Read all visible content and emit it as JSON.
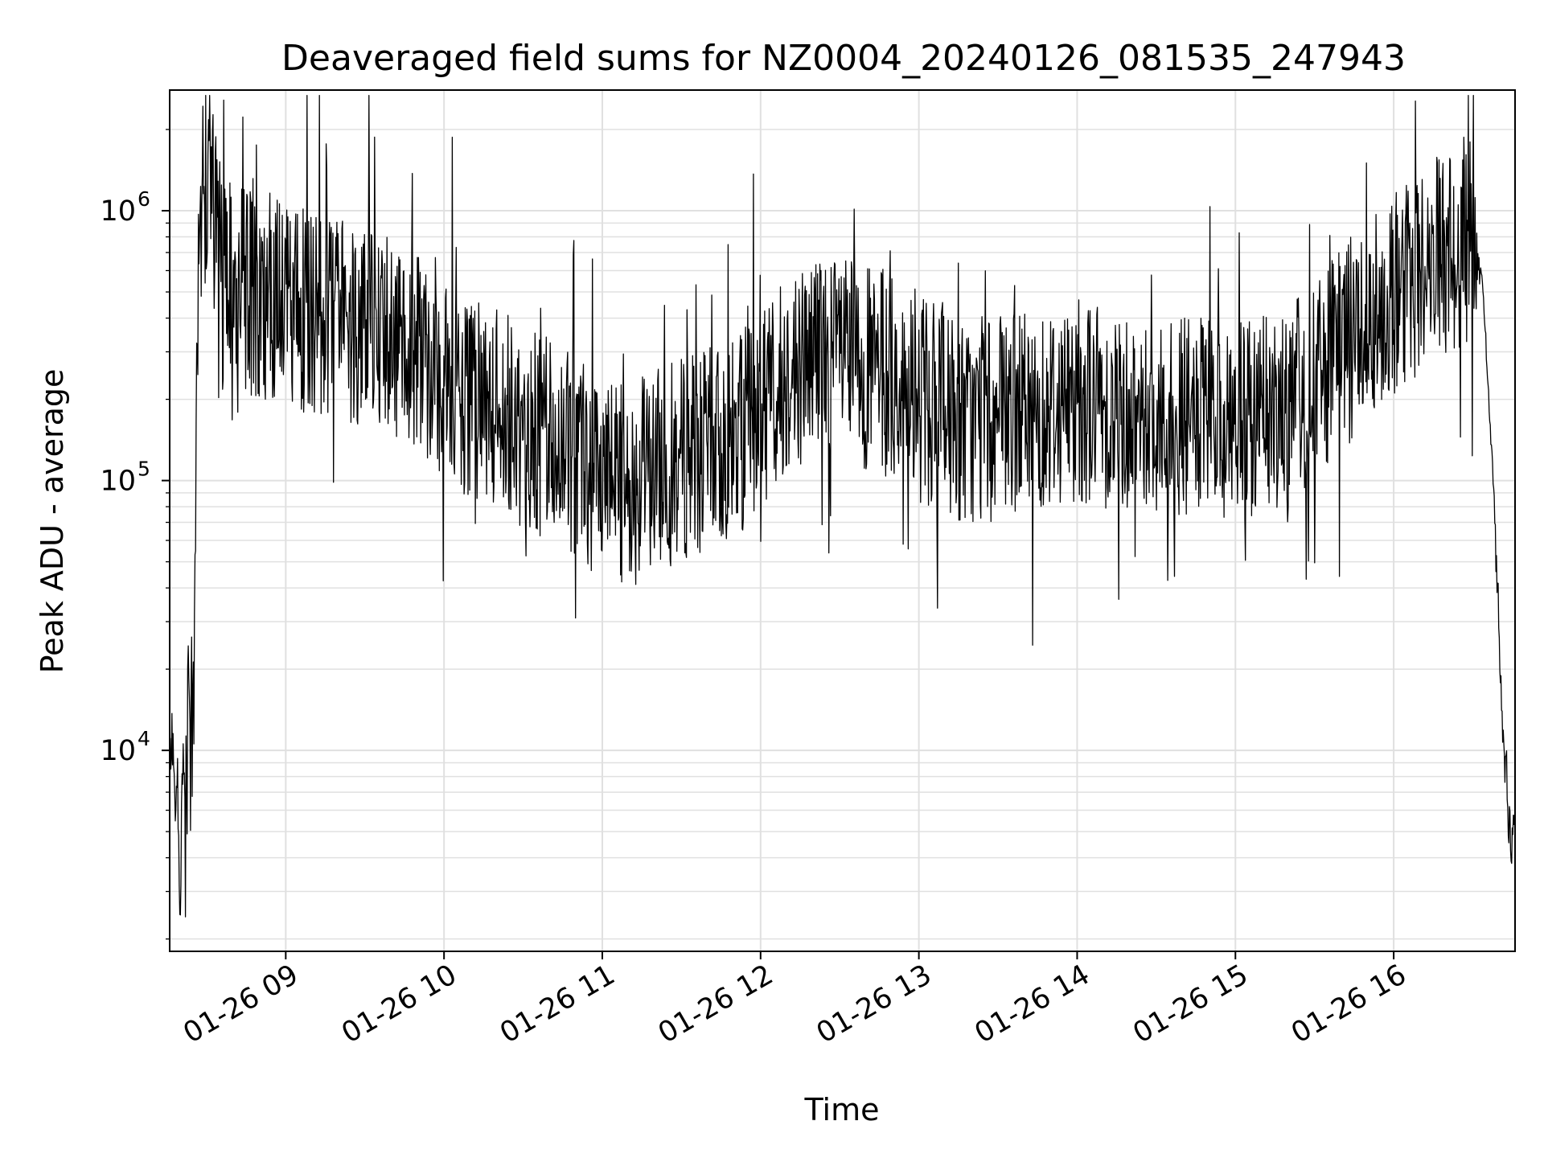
{
  "chart_data": {
    "type": "line",
    "title": "Deaveraged field sums for NZ0004_20240126_081535_247943",
    "xlabel": "Time",
    "ylabel": "Peak ADU - average",
    "yscale": "log",
    "xlim": [
      "2024-01-26 08:16",
      "2024-01-26 16:46"
    ],
    "ylim": [
      1800,
      2800000
    ],
    "grid": true,
    "line_color": "#000000",
    "grid_color": "#e0e0e0",
    "xticks": [
      {
        "value": "2024-01-26 09:00",
        "label": "01-26 09"
      },
      {
        "value": "2024-01-26 10:00",
        "label": "01-26 10"
      },
      {
        "value": "2024-01-26 11:00",
        "label": "01-26 11"
      },
      {
        "value": "2024-01-26 12:00",
        "label": "01-26 12"
      },
      {
        "value": "2024-01-26 13:00",
        "label": "01-26 13"
      },
      {
        "value": "2024-01-26 14:00",
        "label": "01-26 14"
      },
      {
        "value": "2024-01-26 15:00",
        "label": "01-26 15"
      },
      {
        "value": "2024-01-26 16:00",
        "label": "01-26 16"
      }
    ],
    "yticks": [
      {
        "value": 10000,
        "base": "10",
        "exp": "4"
      },
      {
        "value": 100000,
        "base": "10",
        "exp": "5"
      },
      {
        "value": 1000000,
        "base": "10",
        "exp": "6"
      }
    ],
    "series": [
      {
        "x": [
          "2024-01-26 08:16",
          "2024-01-26 08:17",
          "2024-01-26 08:18",
          "2024-01-26 08:19",
          "2024-01-26 08:20",
          "2024-01-26 08:21",
          "2024-01-26 08:22",
          "2024-01-26 08:23",
          "2024-01-26 08:24",
          "2024-01-26 08:25",
          "2024-01-26 08:26",
          "2024-01-26 08:27",
          "2024-01-26 08:28",
          "2024-01-26 08:30",
          "2024-01-26 08:32",
          "2024-01-26 08:34",
          "2024-01-26 08:36",
          "2024-01-26 08:40",
          "2024-01-26 08:45",
          "2024-01-26 08:50",
          "2024-01-26 09:00",
          "2024-01-26 09:10",
          "2024-01-26 09:20",
          "2024-01-26 09:30",
          "2024-01-26 09:40",
          "2024-01-26 09:50",
          "2024-01-26 10:00",
          "2024-01-26 10:10",
          "2024-01-26 10:20",
          "2024-01-26 10:30",
          "2024-01-26 10:40",
          "2024-01-26 10:50",
          "2024-01-26 11:00",
          "2024-01-26 11:10",
          "2024-01-26 11:20",
          "2024-01-26 11:30",
          "2024-01-26 11:40",
          "2024-01-26 11:50",
          "2024-01-26 12:00",
          "2024-01-26 12:10",
          "2024-01-26 12:20",
          "2024-01-26 12:30",
          "2024-01-26 12:40",
          "2024-01-26 12:50",
          "2024-01-26 13:00",
          "2024-01-26 13:10",
          "2024-01-26 13:20",
          "2024-01-26 13:30",
          "2024-01-26 13:40",
          "2024-01-26 13:50",
          "2024-01-26 14:00",
          "2024-01-26 14:10",
          "2024-01-26 14:20",
          "2024-01-26 14:30",
          "2024-01-26 14:40",
          "2024-01-26 14:50",
          "2024-01-26 15:00",
          "2024-01-26 15:10",
          "2024-01-26 15:20",
          "2024-01-26 15:30",
          "2024-01-26 15:40",
          "2024-01-26 15:50",
          "2024-01-26 16:00",
          "2024-01-26 16:10",
          "2024-01-26 16:20",
          "2024-01-26 16:25",
          "2024-01-26 16:30",
          "2024-01-26 16:32",
          "2024-01-26 16:34",
          "2024-01-26 16:36",
          "2024-01-26 16:38",
          "2024-01-26 16:40",
          "2024-01-26 16:42",
          "2024-01-26 16:44",
          "2024-01-26 16:46"
        ],
        "y": [
          9000,
          11000,
          6500,
          8500,
          2500,
          11000,
          4000,
          16000,
          9000,
          18000,
          120000,
          600000,
          1000000,
          1400000,
          1200000,
          800000,
          500000,
          550000,
          500000,
          480000,
          450000,
          420000,
          400000,
          380000,
          350000,
          320000,
          230000,
          200000,
          180000,
          160000,
          140000,
          120000,
          100000,
          95000,
          110000,
          120000,
          130000,
          140000,
          190000,
          250000,
          300000,
          280000,
          260000,
          240000,
          200000,
          180000,
          160000,
          170000,
          180000,
          190000,
          200000,
          190000,
          180000,
          175000,
          170000,
          165000,
          160000,
          170000,
          190000,
          230000,
          300000,
          400000,
          500000,
          600000,
          700000,
          720000,
          800000,
          700000,
          500000,
          200000,
          90000,
          27000,
          10000,
          5000,
          4500
        ]
      }
    ]
  }
}
